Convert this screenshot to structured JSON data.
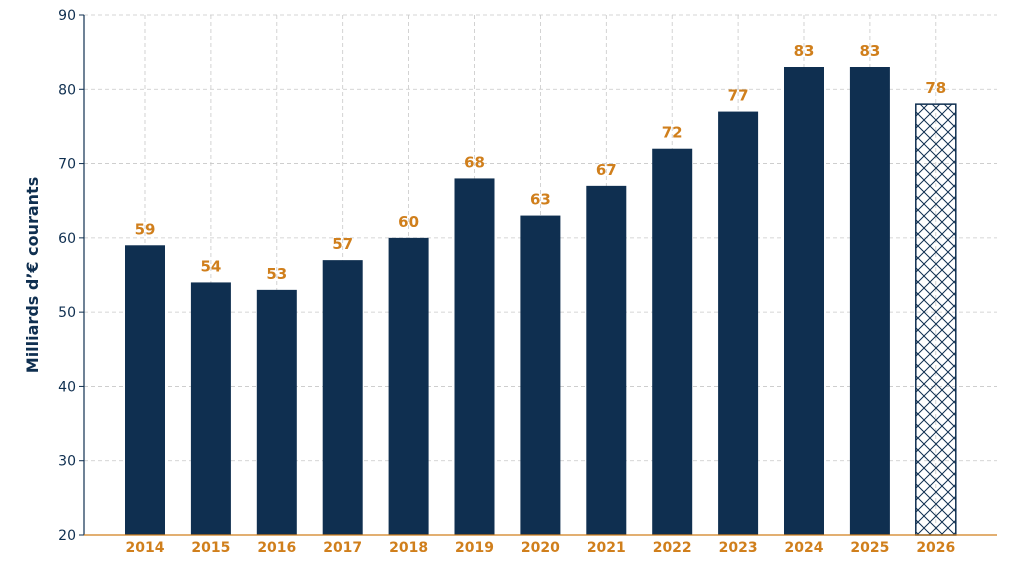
{
  "chart_data": {
    "type": "bar",
    "categories": [
      "2014",
      "2015",
      "2016",
      "2017",
      "2018",
      "2019",
      "2020",
      "2021",
      "2022",
      "2023",
      "2024",
      "2025",
      "2026"
    ],
    "values": [
      59,
      54,
      53,
      57,
      60,
      68,
      63,
      67,
      72,
      77,
      83,
      83,
      78
    ],
    "hatched": [
      false,
      false,
      false,
      false,
      false,
      false,
      false,
      false,
      false,
      false,
      false,
      false,
      true
    ],
    "title": "",
    "xlabel": "",
    "ylabel": "Milliards d’€ courants",
    "ylim": [
      20,
      90
    ],
    "yticks": [
      20,
      30,
      40,
      50,
      60,
      70,
      80,
      90
    ],
    "grid": true,
    "colors": {
      "bar": "#0f2f50",
      "label": "#d07f1c",
      "axis_bottom": "#d07f1c",
      "axis_left": "#0f2f50",
      "grid": "#c8c8c8"
    }
  }
}
